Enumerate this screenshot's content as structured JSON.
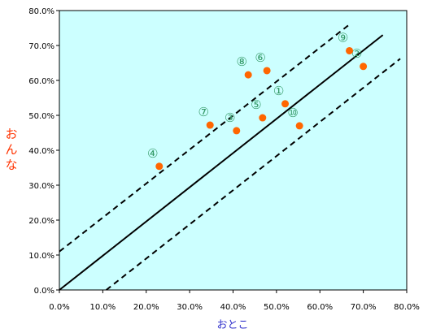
{
  "chart_data": {
    "type": "scatter",
    "xlabel": "おとこ",
    "ylabel_chars": [
      "お",
      "ん",
      "な"
    ],
    "xlim": [
      0,
      80
    ],
    "ylim": [
      0,
      80
    ],
    "x_ticks": [
      "0.0%",
      "10.0%",
      "20.0%",
      "30.0%",
      "40.0%",
      "50.0%",
      "60.0%",
      "70.0%",
      "80.0%"
    ],
    "y_ticks": [
      "0.0%",
      "10.0%",
      "20.0%",
      "30.0%",
      "40.0%",
      "50.0%",
      "60.0%",
      "70.0%",
      "80.0%"
    ],
    "grid": false,
    "plot_background": "#ccffff",
    "colors": {
      "points": "#ff6600",
      "labels": "#339966",
      "xlabel": "#3333cc",
      "ylabel": "#ff3300",
      "lines": "#000000"
    },
    "points": [
      {
        "label": "①",
        "x": 52.0,
        "y": 53.3
      },
      {
        "label": "②",
        "x": 70.0,
        "y": 64.0
      },
      {
        "label": "③",
        "x": 40.8,
        "y": 45.6
      },
      {
        "label": "④",
        "x": 23.0,
        "y": 35.4
      },
      {
        "label": "⑤",
        "x": 46.8,
        "y": 49.3
      },
      {
        "label": "⑥",
        "x": 47.8,
        "y": 62.8
      },
      {
        "label": "⑦",
        "x": 34.7,
        "y": 47.2
      },
      {
        "label": "⑧",
        "x": 43.5,
        "y": 61.6
      },
      {
        "label": "⑨",
        "x": 66.8,
        "y": 68.5
      },
      {
        "label": "⑩",
        "x": 55.3,
        "y": 47.0
      }
    ],
    "lines": [
      {
        "style": "solid",
        "x1": 0,
        "y1": 0,
        "x2": 74.5,
        "y2": 73.0
      },
      {
        "style": "dashed",
        "x1": 0,
        "y1": 11.0,
        "x2": 67.0,
        "y2": 76.2
      },
      {
        "style": "dashed",
        "x1": 10.8,
        "y1": 0,
        "x2": 78.5,
        "y2": 66.2
      }
    ]
  }
}
